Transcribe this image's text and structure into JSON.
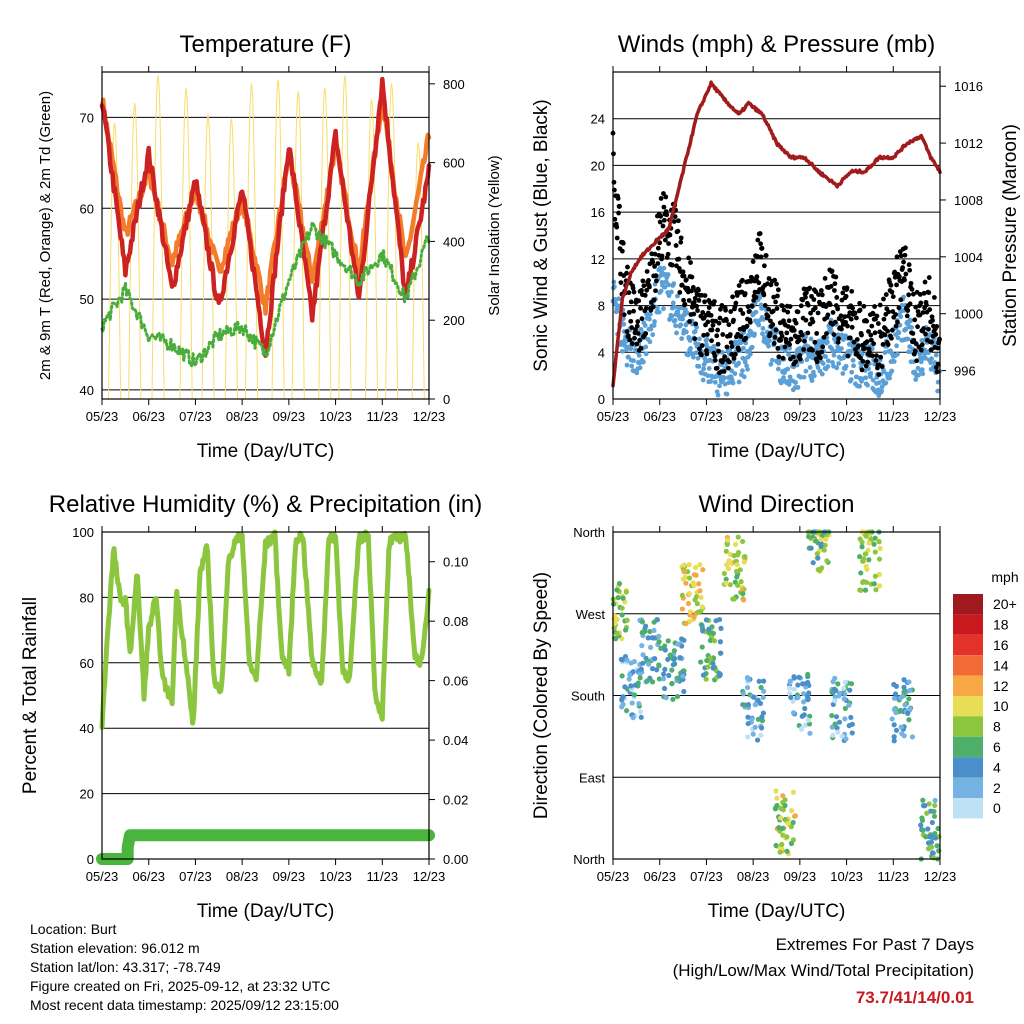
{
  "colors": {
    "red": "#cc2222",
    "orange": "#f47b2a",
    "green": "#4aad3b",
    "yellow": "#f7dd6a",
    "wind": "#5a9fd6",
    "gust": "#000000",
    "pressure": "#a01c1c",
    "rh": "#8cc63f",
    "precip": "#4ab53c",
    "extremes": "#c8191e"
  },
  "chart_data": [
    {
      "id": "temperature",
      "type": "line",
      "title": "Temperature (F)",
      "xlabel": "Time (Day/UTC)",
      "ylabel": "2m & 9m T (Red, Orange) & 2m Td (Green)",
      "y2label": "Solar Insolation (Yellow)",
      "ylim": [
        39,
        75
      ],
      "y2lim": [
        0,
        830
      ],
      "yticks": [
        40,
        50,
        60,
        70
      ],
      "y2ticks": [
        0,
        200,
        400,
        600,
        800
      ],
      "xticks": [
        "05/23",
        "06/23",
        "07/23",
        "08/23",
        "09/23",
        "10/23",
        "11/23",
        "12/23"
      ],
      "series": [
        {
          "name": "2m T",
          "color": "red",
          "x": [
            0,
            0.5,
            1,
            1.5,
            2,
            2.5,
            3,
            3.5,
            4,
            4.5,
            5,
            5.5,
            6,
            6.5,
            7
          ],
          "values": [
            72,
            53,
            66,
            51,
            63,
            49,
            62,
            44,
            67,
            48,
            68,
            50,
            74,
            50,
            64
          ]
        },
        {
          "name": "9m T",
          "color": "orange",
          "x": [
            0,
            0.5,
            1,
            1.5,
            2,
            2.5,
            3,
            3.5,
            4,
            4.5,
            5,
            5.5,
            6,
            6.5,
            7
          ],
          "values": [
            72,
            57,
            64,
            54,
            62,
            53,
            61,
            49,
            66,
            52,
            67,
            53,
            72,
            54,
            68
          ]
        },
        {
          "name": "2m Td",
          "color": "green",
          "x": [
            0,
            0.5,
            1,
            1.5,
            2,
            2.5,
            3,
            3.5,
            4,
            4.5,
            5,
            5.5,
            6,
            6.5,
            7
          ],
          "values": [
            47,
            51,
            46,
            45,
            43,
            46,
            47,
            44,
            52,
            58,
            55,
            52,
            55,
            50,
            57
          ]
        },
        {
          "name": "Solar Insolation",
          "color": "yellow",
          "axis": "y2",
          "peaks": [
            0.27,
            0.7,
            1.2,
            1.8,
            2.27,
            2.77,
            3.2,
            3.77,
            4.2,
            4.77,
            5.2,
            5.77,
            6.2,
            6.77
          ],
          "values": [
            700,
            750,
            820,
            790,
            720,
            710,
            800,
            810,
            780,
            790,
            820,
            760,
            800,
            650
          ]
        }
      ]
    },
    {
      "id": "winds",
      "type": "line",
      "title": "Winds (mph) & Pressure (mb)",
      "xlabel": "Time (Day/UTC)",
      "ylabel": "Sonic Wind & Gust (Blue, Black)",
      "y2label": "Station Pressure (Maroon)",
      "ylim": [
        0,
        28
      ],
      "y2lim": [
        994,
        1017
      ],
      "yticks": [
        0,
        4,
        8,
        12,
        16,
        20,
        24
      ],
      "y2ticks": [
        996,
        1000,
        1004,
        1008,
        1012,
        1016
      ],
      "xticks": [
        "05/23",
        "06/23",
        "07/23",
        "08/23",
        "09/23",
        "10/23",
        "11/23",
        "12/23"
      ],
      "series": [
        {
          "name": "Pressure",
          "color": "pressure",
          "axis": "y2",
          "x": [
            0,
            0.2,
            0.4,
            0.6,
            0.9,
            1.2,
            1.5,
            1.8,
            2.1,
            2.4,
            2.7,
            2.9,
            3.2,
            3.5,
            3.8,
            4.1,
            4.4,
            4.8,
            5.1,
            5.4,
            5.7,
            6.0,
            6.3,
            6.6,
            6.8,
            7
          ],
          "values": [
            995,
            1001,
            1003,
            1004,
            1005,
            1006,
            1010,
            1014,
            1016.2,
            1015,
            1014,
            1014.8,
            1014,
            1012,
            1011,
            1011,
            1010,
            1009,
            1010,
            1010,
            1011,
            1011,
            1012,
            1012.5,
            1011,
            1010
          ]
        },
        {
          "name": "Wind",
          "color": "wind",
          "base": [
            9,
            5,
            4,
            6,
            10,
            8,
            6,
            4,
            3,
            2,
            3,
            4,
            8,
            5,
            3,
            2,
            4,
            3,
            5,
            4,
            3,
            3,
            2,
            4,
            7,
            3,
            5,
            2
          ]
        },
        {
          "name": "Gust",
          "color": "gust",
          "base": [
            20,
            9,
            6,
            9,
            15,
            14,
            10,
            7,
            6,
            5,
            6,
            8,
            12,
            8,
            6,
            5,
            7,
            6,
            9,
            7,
            6,
            5,
            5,
            8,
            11,
            6,
            8,
            4
          ]
        }
      ]
    },
    {
      "id": "humidity",
      "type": "line",
      "title": "Relative Humidity (%) & Precipitation (in)",
      "xlabel": "Time (Day/UTC)",
      "ylabel": "Percent & Total Rainfall",
      "ylim": [
        0,
        100
      ],
      "y2lim": [
        0,
        0.11
      ],
      "yticks": [
        0,
        20,
        40,
        60,
        80,
        100
      ],
      "y2ticks": [
        "0.00",
        "0.02",
        "0.04",
        "0.06",
        "0.08",
        "0.10"
      ],
      "xticks": [
        "05/23",
        "06/23",
        "07/23",
        "08/23",
        "09/23",
        "10/23",
        "11/23",
        "12/23"
      ],
      "series": [
        {
          "name": "RH",
          "color": "rh",
          "x": [
            0,
            0.1,
            0.25,
            0.4,
            0.5,
            0.6,
            0.75,
            0.9,
            1.0,
            1.15,
            1.3,
            1.5,
            1.6,
            1.8,
            1.95,
            2.1,
            2.25,
            2.4,
            2.55,
            2.7,
            2.85,
            3.0,
            3.15,
            3.3,
            3.5,
            3.7,
            3.85,
            4.0,
            4.15,
            4.3,
            4.5,
            4.7,
            4.85,
            5.0,
            5.15,
            5.3,
            5.5,
            5.7,
            5.85,
            6.0,
            6.15,
            6.3,
            6.5,
            6.7,
            6.85,
            7.0
          ],
          "values": [
            40,
            65,
            95,
            78,
            80,
            62,
            88,
            50,
            70,
            80,
            55,
            48,
            82,
            60,
            40,
            88,
            95,
            55,
            50,
            90,
            97,
            99,
            60,
            55,
            96,
            99,
            62,
            58,
            98,
            99,
            60,
            54,
            97,
            99,
            58,
            55,
            98,
            99,
            50,
            44,
            97,
            98,
            99,
            62,
            60,
            82
          ]
        },
        {
          "name": "Total Precipitation",
          "color": "precip",
          "axis": "y2",
          "x": [
            0,
            0.55,
            0.55,
            0.6,
            7
          ],
          "values": [
            0,
            0,
            0.004,
            0.008,
            0.008
          ]
        }
      ]
    },
    {
      "id": "direction",
      "type": "scatter",
      "title": "Wind Direction",
      "xlabel": "Time (Day/UTC)",
      "ylabel": "Direction (Colored By Speed)",
      "ylim": [
        0,
        360
      ],
      "ytick_labels": [
        "North",
        "East",
        "South",
        "West",
        "North"
      ],
      "yticks": [
        0,
        90,
        180,
        270,
        360
      ],
      "xticks": [
        "05/23",
        "06/23",
        "07/23",
        "08/23",
        "09/23",
        "10/23",
        "11/23",
        "12/23"
      ],
      "legend_title": "mph",
      "legend_labels": [
        "20+",
        "18",
        "16",
        "14",
        "12",
        "10",
        "8",
        "6",
        "4",
        "2",
        "0"
      ],
      "legend_colors": [
        "#9e1a1f",
        "#c8191e",
        "#e4322b",
        "#f26b36",
        "#f7a744",
        "#e7dd56",
        "#8cc63f",
        "#4daf6a",
        "#4a8fc9",
        "#74b3e2",
        "#bfe1f6"
      ],
      "clusters": [
        {
          "x": 0.1,
          "dir": 270,
          "speed": 8
        },
        {
          "x": 0.4,
          "dir": 190,
          "speed": 3
        },
        {
          "x": 0.8,
          "dir": 230,
          "speed": 4
        },
        {
          "x": 1.3,
          "dir": 210,
          "speed": 4
        },
        {
          "x": 1.7,
          "dir": 290,
          "speed": 10
        },
        {
          "x": 2.1,
          "dir": 230,
          "speed": 6
        },
        {
          "x": 2.6,
          "dir": 320,
          "speed": 9
        },
        {
          "x": 3.0,
          "dir": 165,
          "speed": 3
        },
        {
          "x": 3.7,
          "dir": 40,
          "speed": 9
        },
        {
          "x": 4.0,
          "dir": 170,
          "speed": 3
        },
        {
          "x": 4.4,
          "dir": 350,
          "speed": 7
        },
        {
          "x": 4.9,
          "dir": 165,
          "speed": 3
        },
        {
          "x": 5.5,
          "dir": 330,
          "speed": 8
        },
        {
          "x": 6.2,
          "dir": 165,
          "speed": 4
        },
        {
          "x": 6.8,
          "dir": 30,
          "speed": 5
        }
      ]
    }
  ],
  "info": {
    "location": "Location: Burt",
    "elevation": "Station elevation: 96.012 m",
    "latlon": "Station lat/lon: 43.317; -78.749",
    "created": "Figure created on Fri, 2025-09-12, at 23:32 UTC",
    "recent": "Most recent data timestamp: 2025/09/12 23:15:00"
  },
  "extremes": {
    "line1": "Extremes For Past 7 Days",
    "line2": "(High/Low/Max Wind/Total Precipitation)",
    "value": "73.7/41/14/0.01"
  }
}
